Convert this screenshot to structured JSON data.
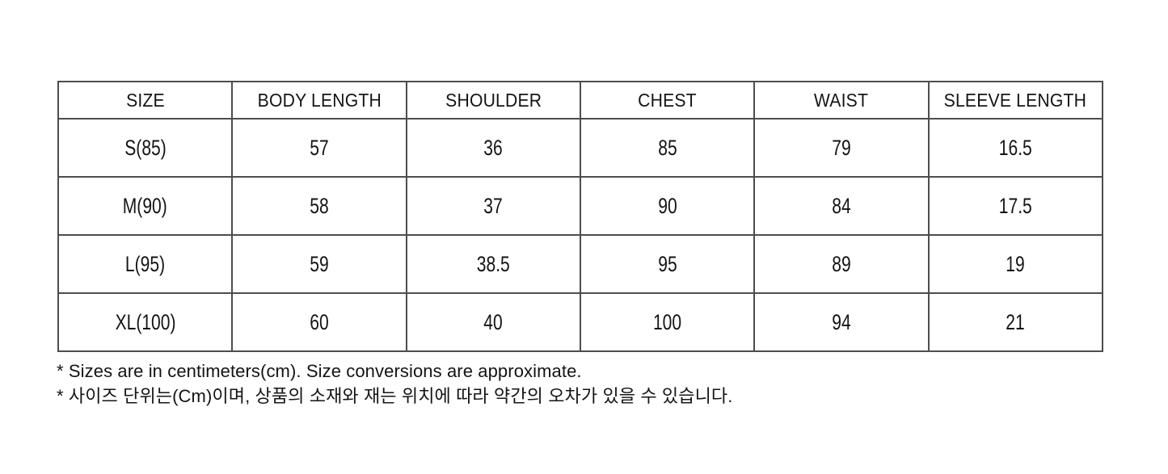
{
  "table": {
    "columns": [
      "SIZE",
      "BODY LENGTH",
      "SHOULDER",
      "CHEST",
      "WAIST",
      "SLEEVE LENGTH"
    ],
    "rows": [
      {
        "cells": [
          "S(85)",
          "57",
          "36",
          "85",
          "79",
          "16.5"
        ]
      },
      {
        "cells": [
          "M(90)",
          "58",
          "37",
          "90",
          "84",
          "17.5"
        ]
      },
      {
        "cells": [
          "L(95)",
          "59",
          "38.5",
          "95",
          "89",
          "19"
        ]
      },
      {
        "cells": [
          "XL(100)",
          "60",
          "40",
          "100",
          "94",
          "21"
        ]
      }
    ]
  },
  "footnotes": {
    "en": "* Sizes are in centimeters(cm). Size conversions are approximate.",
    "ko": "* 사이즈 단위는(Cm)이며, 상품의 소재와 재는 위치에 따라 약간의 오차가 있을 수 있습니다."
  },
  "colors": {
    "border": "#4d4d4d",
    "text": "#141414",
    "background": "#ffffff"
  },
  "units": "cm"
}
